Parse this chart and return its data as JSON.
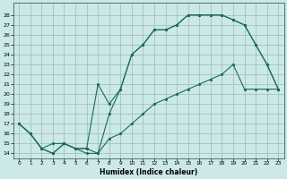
{
  "xlabel": "Humidex (Indice chaleur)",
  "bg_color": "#cce8e8",
  "grid_color": "#99bbbb",
  "line_color": "#1a6b5a",
  "xlim": [
    -0.5,
    23.5
  ],
  "ylim": [
    13.5,
    29.2
  ],
  "xticks": [
    0,
    1,
    2,
    3,
    4,
    5,
    6,
    7,
    8,
    9,
    10,
    11,
    12,
    13,
    14,
    15,
    16,
    17,
    18,
    19,
    20,
    21,
    22,
    23
  ],
  "yticks": [
    14,
    15,
    16,
    17,
    18,
    19,
    20,
    21,
    22,
    23,
    24,
    25,
    26,
    27,
    28
  ],
  "line1_x": [
    0,
    1,
    2,
    3,
    4,
    5,
    6,
    7,
    8,
    9,
    10,
    11,
    12,
    13,
    14,
    15,
    16,
    17,
    18,
    19,
    20,
    21,
    22,
    23
  ],
  "line1_y": [
    17,
    16,
    14.5,
    14,
    15,
    14.5,
    14,
    14,
    18,
    20.5,
    24,
    25,
    26.5,
    26.5,
    27,
    28,
    28,
    28,
    28,
    27.5,
    27,
    25,
    23,
    20.5
  ],
  "line2_x": [
    0,
    1,
    2,
    3,
    4,
    5,
    6,
    7,
    8,
    9,
    10,
    11,
    12,
    13,
    14,
    15,
    16,
    17,
    18,
    19,
    20,
    21,
    22,
    23
  ],
  "line2_y": [
    17,
    16,
    14.5,
    15,
    15,
    14.5,
    14.5,
    21,
    19,
    20.5,
    24,
    25,
    26.5,
    26.5,
    27,
    28,
    28,
    28,
    28,
    27.5,
    27,
    25,
    23,
    20.5
  ],
  "line3_x": [
    0,
    1,
    2,
    3,
    4,
    5,
    6,
    7,
    8,
    9,
    10,
    11,
    12,
    13,
    14,
    15,
    16,
    17,
    18,
    19,
    20,
    21,
    22,
    23
  ],
  "line3_y": [
    17,
    16,
    14.5,
    14,
    15,
    14.5,
    14.5,
    14,
    15.5,
    16,
    17,
    18,
    19,
    19.5,
    20,
    20.5,
    21,
    21.5,
    22,
    23,
    20.5,
    20.5,
    20.5,
    20.5
  ]
}
